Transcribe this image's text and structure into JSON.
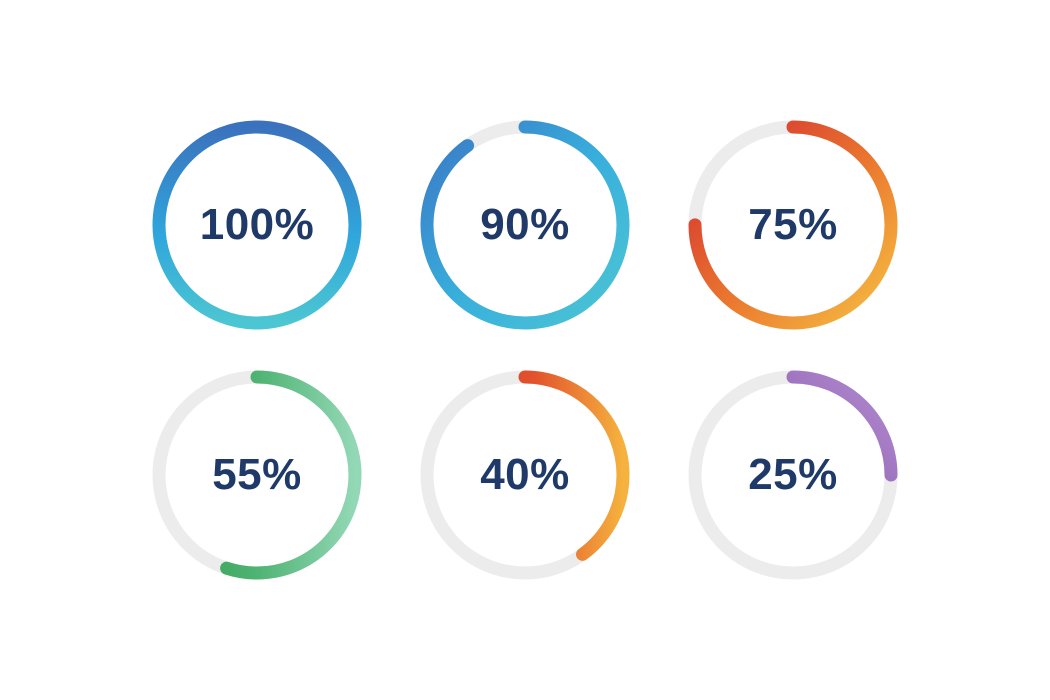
{
  "chart_data": {
    "type": "pie",
    "subtype": "circular-progress-rings",
    "description": "Six circular percentage progress indicators in a 2x3 grid",
    "layout": {
      "rows": 2,
      "columns": 3,
      "start_angle": "top",
      "direction": "clockwise",
      "rounded_caps": true,
      "track_color": "#ECECEC",
      "label_color": "#1F3A68",
      "background_color": "#FFFFFF"
    },
    "items": [
      {
        "label": "100%",
        "value": 100,
        "gradient": {
          "direction": [
            0,
            0.5,
            1,
            0.5
          ],
          "stops": [
            {
              "offset": "0%",
              "color": "#4CC6D2"
            },
            {
              "offset": "45%",
              "color": "#2FA6DC"
            },
            {
              "offset": "100%",
              "color": "#3B72BD"
            }
          ]
        }
      },
      {
        "label": "90%",
        "value": 90,
        "gradient": {
          "direction": [
            0,
            1,
            1,
            0
          ],
          "stops": [
            {
              "offset": "0%",
              "color": "#4CC6D4"
            },
            {
              "offset": "50%",
              "color": "#38AEDC"
            },
            {
              "offset": "100%",
              "color": "#3B77C4"
            }
          ]
        }
      },
      {
        "label": "75%",
        "value": 75,
        "gradient": {
          "direction": [
            1,
            0,
            0,
            1
          ],
          "stops": [
            {
              "offset": "0%",
              "color": "#D22730"
            },
            {
              "offset": "55%",
              "color": "#EB7A2F"
            },
            {
              "offset": "100%",
              "color": "#F6C243"
            }
          ]
        }
      },
      {
        "label": "55%",
        "value": 55,
        "gradient": {
          "direction": [
            0.5,
            0,
            0.5,
            1
          ],
          "stops": [
            {
              "offset": "0%",
              "color": "#2F9E4F"
            },
            {
              "offset": "50%",
              "color": "#4FB373"
            },
            {
              "offset": "100%",
              "color": "#93D8B6"
            }
          ]
        }
      },
      {
        "label": "40%",
        "value": 40,
        "gradient": {
          "direction": [
            0.5,
            0,
            0.5,
            1
          ],
          "stops": [
            {
              "offset": "0%",
              "color": "#D22730"
            },
            {
              "offset": "55%",
              "color": "#E2532C"
            },
            {
              "offset": "100%",
              "color": "#F5B23E"
            }
          ]
        }
      },
      {
        "label": "25%",
        "value": 25,
        "gradient": {
          "direction": [
            0,
            0,
            1,
            1
          ],
          "stops": [
            {
              "offset": "0%",
              "color": "#7B3E9D"
            },
            {
              "offset": "55%",
              "color": "#9566B5"
            },
            {
              "offset": "100%",
              "color": "#B18BD0"
            }
          ]
        }
      }
    ]
  }
}
